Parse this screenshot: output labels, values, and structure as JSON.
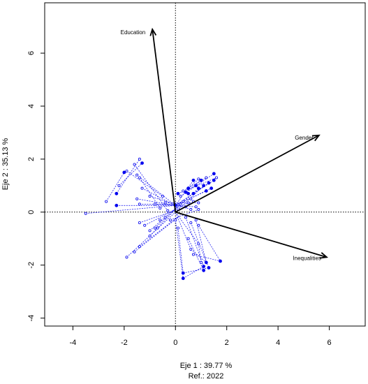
{
  "chart_data": {
    "type": "scatter",
    "title": "",
    "xlabel": "Eje 1 :  39.77 %",
    "ylabel": "Eje 2 :  35.13 %",
    "subtitle": "Ref.:  2022",
    "xlim": [
      -5.1,
      7.4
    ],
    "ylim": [
      -4.3,
      7.9
    ],
    "xticks": [
      "-4",
      "-2",
      "0",
      "2",
      "4",
      "6"
    ],
    "yticks": [
      "-4",
      "-2",
      "0",
      "2",
      "4",
      "6"
    ],
    "grid": false,
    "reference_lines": {
      "x": 0,
      "y": 0,
      "style": "dotted"
    },
    "colors": {
      "points": "#0000ee",
      "arrows": "#000000",
      "frame": "#000000"
    },
    "arrows": [
      {
        "label": "Education",
        "x": -0.9,
        "y": 6.9
      },
      {
        "label": "Gender",
        "x": 5.6,
        "y": 2.9
      },
      {
        "label": "Inequalities",
        "x": 5.9,
        "y": -1.7
      }
    ],
    "points": [
      {
        "x": 0.0,
        "y": 0.25,
        "filled": true
      },
      {
        "x": -3.5,
        "y": -0.05,
        "filled": false
      },
      {
        "x": -2.7,
        "y": 0.4,
        "filled": false
      },
      {
        "x": -2.3,
        "y": 0.25,
        "filled": true
      },
      {
        "x": -2.3,
        "y": 0.7,
        "filled": true
      },
      {
        "x": -2.2,
        "y": 1.0,
        "filled": false
      },
      {
        "x": -2.0,
        "y": 1.5,
        "filled": true
      },
      {
        "x": -1.9,
        "y": 1.55,
        "filled": false
      },
      {
        "x": -1.6,
        "y": 1.8,
        "filled": false
      },
      {
        "x": -1.4,
        "y": 2.0,
        "filled": false
      },
      {
        "x": -1.3,
        "y": 1.85,
        "filled": true
      },
      {
        "x": -1.5,
        "y": 1.4,
        "filled": false
      },
      {
        "x": -1.4,
        "y": 1.3,
        "filled": false
      },
      {
        "x": -1.3,
        "y": 0.9,
        "filled": false
      },
      {
        "x": -1.5,
        "y": 0.5,
        "filled": false
      },
      {
        "x": -1.4,
        "y": 0.3,
        "filled": false
      },
      {
        "x": -1.0,
        "y": 0.6,
        "filled": false
      },
      {
        "x": -0.8,
        "y": 0.3,
        "filled": false
      },
      {
        "x": -0.6,
        "y": 0.15,
        "filled": false
      },
      {
        "x": -0.5,
        "y": 0.6,
        "filled": false
      },
      {
        "x": -0.4,
        "y": 0.35,
        "filled": false
      },
      {
        "x": -0.3,
        "y": 0.05,
        "filled": false
      },
      {
        "x": -1.4,
        "y": -0.4,
        "filled": false
      },
      {
        "x": -1.2,
        "y": -0.5,
        "filled": false
      },
      {
        "x": -1.0,
        "y": -0.7,
        "filled": false
      },
      {
        "x": -0.8,
        "y": -0.6,
        "filled": false
      },
      {
        "x": -0.6,
        "y": -0.3,
        "filled": false
      },
      {
        "x": -0.4,
        "y": -0.2,
        "filled": false
      },
      {
        "x": -0.2,
        "y": -0.3,
        "filled": false
      },
      {
        "x": -1.9,
        "y": -1.7,
        "filled": false
      },
      {
        "x": -1.6,
        "y": -1.5,
        "filled": false
      },
      {
        "x": -1.4,
        "y": -1.3,
        "filled": false
      },
      {
        "x": -1.0,
        "y": -0.9,
        "filled": false
      },
      {
        "x": -0.7,
        "y": -0.6,
        "filled": false
      },
      {
        "x": 0.1,
        "y": 0.7,
        "filled": true
      },
      {
        "x": 0.2,
        "y": 0.6,
        "filled": false
      },
      {
        "x": 0.3,
        "y": 0.8,
        "filled": false
      },
      {
        "x": 0.4,
        "y": 0.75,
        "filled": true
      },
      {
        "x": 0.5,
        "y": 0.7,
        "filled": true
      },
      {
        "x": 0.5,
        "y": 0.9,
        "filled": true
      },
      {
        "x": 0.6,
        "y": 0.5,
        "filled": false
      },
      {
        "x": 0.7,
        "y": 0.7,
        "filled": true
      },
      {
        "x": 0.7,
        "y": 1.2,
        "filled": true
      },
      {
        "x": 0.8,
        "y": 1.0,
        "filled": true
      },
      {
        "x": 0.9,
        "y": 0.9,
        "filled": true
      },
      {
        "x": 0.9,
        "y": 1.25,
        "filled": false
      },
      {
        "x": 1.0,
        "y": 1.2,
        "filled": true
      },
      {
        "x": 1.1,
        "y": 1.0,
        "filled": true
      },
      {
        "x": 1.2,
        "y": 0.8,
        "filled": true
      },
      {
        "x": 1.2,
        "y": 1.3,
        "filled": false
      },
      {
        "x": 1.3,
        "y": 1.1,
        "filled": true
      },
      {
        "x": 1.4,
        "y": 0.9,
        "filled": true
      },
      {
        "x": 1.5,
        "y": 1.2,
        "filled": true
      },
      {
        "x": 1.5,
        "y": 1.45,
        "filled": true
      },
      {
        "x": 1.6,
        "y": 1.3,
        "filled": false
      },
      {
        "x": 0.2,
        "y": 0.3,
        "filled": false
      },
      {
        "x": 0.3,
        "y": 0.4,
        "filled": false
      },
      {
        "x": 0.4,
        "y": 0.2,
        "filled": false
      },
      {
        "x": 0.5,
        "y": 0.35,
        "filled": false
      },
      {
        "x": 0.6,
        "y": 0.1,
        "filled": false
      },
      {
        "x": 0.7,
        "y": 0.4,
        "filled": false
      },
      {
        "x": 0.8,
        "y": 0.2,
        "filled": false
      },
      {
        "x": 0.9,
        "y": 0.35,
        "filled": false
      },
      {
        "x": 0.9,
        "y": 0.1,
        "filled": false
      },
      {
        "x": 0.4,
        "y": -0.2,
        "filled": false
      },
      {
        "x": 0.6,
        "y": -0.4,
        "filled": false
      },
      {
        "x": 0.8,
        "y": -0.3,
        "filled": false
      },
      {
        "x": 0.9,
        "y": -0.5,
        "filled": false
      },
      {
        "x": 0.0,
        "y": -0.3,
        "filled": false
      },
      {
        "x": 0.1,
        "y": -0.6,
        "filled": false
      },
      {
        "x": 0.5,
        "y": -1.0,
        "filled": false
      },
      {
        "x": 0.6,
        "y": -1.4,
        "filled": false
      },
      {
        "x": 0.7,
        "y": -1.6,
        "filled": false
      },
      {
        "x": 0.9,
        "y": -1.2,
        "filled": false
      },
      {
        "x": 0.3,
        "y": -2.3,
        "filled": true
      },
      {
        "x": 0.3,
        "y": -2.5,
        "filled": true
      },
      {
        "x": 1.1,
        "y": -2.2,
        "filled": true
      },
      {
        "x": 1.1,
        "y": -2.05,
        "filled": true
      },
      {
        "x": 1.3,
        "y": -2.1,
        "filled": true
      },
      {
        "x": 1.2,
        "y": -1.9,
        "filled": true
      },
      {
        "x": 1.75,
        "y": -1.85,
        "filled": true
      },
      {
        "x": 1.0,
        "y": -1.9,
        "filled": false
      }
    ],
    "segments": [
      [
        -3.5,
        -0.05,
        0.0,
        0.25
      ],
      [
        -2.7,
        0.4,
        -2.0,
        1.5
      ],
      [
        -2.3,
        0.7,
        -1.4,
        2.0
      ],
      [
        -2.2,
        1.0,
        -1.3,
        1.85
      ],
      [
        -1.9,
        1.55,
        -0.5,
        0.6
      ],
      [
        -1.6,
        1.8,
        -0.3,
        0.05
      ],
      [
        -1.5,
        1.4,
        0.0,
        0.25
      ],
      [
        -1.4,
        1.3,
        -0.6,
        0.15
      ],
      [
        -1.3,
        0.9,
        0.0,
        0.25
      ],
      [
        -2.3,
        0.25,
        0.0,
        0.25
      ],
      [
        -1.5,
        0.5,
        0.0,
        0.25
      ],
      [
        -1.4,
        0.3,
        0.2,
        0.3
      ],
      [
        -1.9,
        -1.7,
        0.0,
        0.0
      ],
      [
        -1.6,
        -1.5,
        0.1,
        -0.2
      ],
      [
        -1.4,
        -1.3,
        0.2,
        -0.1
      ],
      [
        -1.0,
        -0.9,
        0.0,
        0.1
      ],
      [
        -1.4,
        -0.4,
        0.4,
        0.2
      ],
      [
        -1.2,
        -0.5,
        0.5,
        0.35
      ],
      [
        -1.0,
        -0.7,
        0.3,
        0.4
      ],
      [
        -0.8,
        -0.6,
        0.2,
        0.3
      ],
      [
        -1.0,
        0.6,
        0.6,
        0.1
      ],
      [
        -0.8,
        0.3,
        0.8,
        0.2
      ],
      [
        -0.4,
        0.35,
        0.9,
        0.35
      ],
      [
        -0.2,
        -0.3,
        0.9,
        0.1
      ],
      [
        0.1,
        0.7,
        1.6,
        1.3
      ],
      [
        0.2,
        0.6,
        1.5,
        1.45
      ],
      [
        0.3,
        0.8,
        1.2,
        1.3
      ],
      [
        0.4,
        0.75,
        1.0,
        1.2
      ],
      [
        0.5,
        0.9,
        0.9,
        1.25
      ],
      [
        0.0,
        0.25,
        1.5,
        1.2
      ],
      [
        0.0,
        0.25,
        1.3,
        1.1
      ],
      [
        0.0,
        0.25,
        1.4,
        0.9
      ],
      [
        0.0,
        0.25,
        1.2,
        0.8
      ],
      [
        0.0,
        0.0,
        1.1,
        1.0
      ],
      [
        0.0,
        0.1,
        0.9,
        0.9
      ],
      [
        0.0,
        0.25,
        0.7,
        1.2
      ],
      [
        0.0,
        -0.3,
        0.3,
        -2.5
      ],
      [
        0.1,
        -0.6,
        0.3,
        -2.3
      ],
      [
        0.3,
        -2.5,
        1.1,
        -2.05
      ],
      [
        0.3,
        -2.3,
        1.3,
        -2.1
      ],
      [
        0.5,
        -1.0,
        1.1,
        -2.2
      ],
      [
        0.6,
        -1.4,
        1.2,
        -1.9
      ],
      [
        0.7,
        -1.6,
        1.75,
        -1.85
      ],
      [
        0.9,
        -1.2,
        1.0,
        -1.9
      ],
      [
        0.4,
        -0.2,
        1.1,
        -2.05
      ],
      [
        0.6,
        -0.4,
        1.3,
        -2.1
      ],
      [
        0.8,
        -0.3,
        1.2,
        -1.9
      ],
      [
        0.9,
        -0.5,
        1.75,
        -1.85
      ],
      [
        0.0,
        0.0,
        0.6,
        -1.4
      ],
      [
        0.0,
        0.0,
        0.9,
        -1.2
      ]
    ]
  }
}
